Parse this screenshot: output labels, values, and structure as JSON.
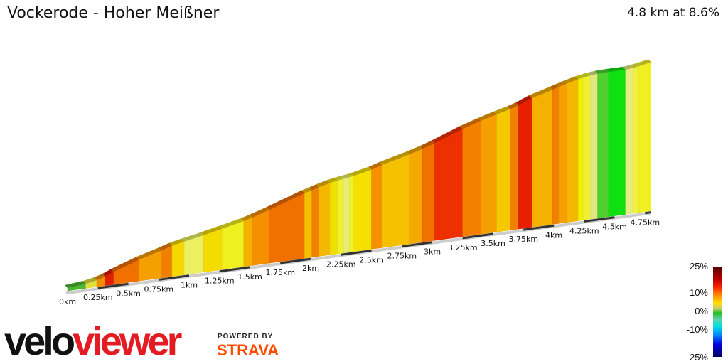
{
  "title": "Vockerode - Hoher Meißner",
  "summary": "4.8 km at 8.6%",
  "chart_data": {
    "type": "area",
    "xlabel": "",
    "ylabel": "",
    "total_distance_km": 4.8,
    "average_gradient_pct": 8.6,
    "x_ticks": [
      "0km",
      "0.25km",
      "0.5km",
      "0.75km",
      "1km",
      "1.25km",
      "1.5km",
      "1.75km",
      "2km",
      "2.25km",
      "2.5km",
      "2.75km",
      "3km",
      "3.25km",
      "3.5km",
      "3.75km",
      "4km",
      "4.25km",
      "4.5km",
      "4.75km"
    ],
    "segments": [
      {
        "from": 0,
        "to": 0.15,
        "gradient": 3,
        "color": "#4cb830"
      },
      {
        "from": 0.15,
        "to": 0.24,
        "gradient": 6,
        "color": "#e0e040"
      },
      {
        "from": 0.24,
        "to": 0.31,
        "gradient": 9,
        "color": "#f09000"
      },
      {
        "from": 0.31,
        "to": 0.38,
        "gradient": 14,
        "color": "#e02000"
      },
      {
        "from": 0.38,
        "to": 0.59,
        "gradient": 11,
        "color": "#f07000"
      },
      {
        "from": 0.59,
        "to": 0.77,
        "gradient": 9,
        "color": "#f5a000"
      },
      {
        "from": 0.77,
        "to": 0.86,
        "gradient": 10,
        "color": "#f08000"
      },
      {
        "from": 0.86,
        "to": 0.96,
        "gradient": 7,
        "color": "#f5d800"
      },
      {
        "from": 0.96,
        "to": 1.12,
        "gradient": 6,
        "color": "#ecf060"
      },
      {
        "from": 1.12,
        "to": 1.27,
        "gradient": 7,
        "color": "#f5dc00"
      },
      {
        "from": 1.27,
        "to": 1.45,
        "gradient": 7,
        "color": "#f0f020"
      },
      {
        "from": 1.45,
        "to": 1.52,
        "gradient": 9,
        "color": "#f5b000"
      },
      {
        "from": 1.52,
        "to": 1.66,
        "gradient": 10,
        "color": "#f59000"
      },
      {
        "from": 1.66,
        "to": 1.95,
        "gradient": 11,
        "color": "#f07000"
      },
      {
        "from": 1.95,
        "to": 2.01,
        "gradient": 8,
        "color": "#f5c000"
      },
      {
        "from": 2.01,
        "to": 2.07,
        "gradient": 10,
        "color": "#f08000"
      },
      {
        "from": 2.07,
        "to": 2.16,
        "gradient": 8,
        "color": "#f5b800"
      },
      {
        "from": 2.16,
        "to": 2.22,
        "gradient": 6,
        "color": "#f0e000"
      },
      {
        "from": 2.22,
        "to": 2.27,
        "gradient": 5,
        "color": "#f0f030"
      },
      {
        "from": 2.27,
        "to": 2.32,
        "gradient": 4,
        "color": "#e8ec70"
      },
      {
        "from": 2.32,
        "to": 2.35,
        "gradient": 5,
        "color": "#f0f030"
      },
      {
        "from": 2.35,
        "to": 2.5,
        "gradient": 7,
        "color": "#f5e000"
      },
      {
        "from": 2.5,
        "to": 2.59,
        "gradient": 10,
        "color": "#f59000"
      },
      {
        "from": 2.59,
        "to": 2.81,
        "gradient": 8,
        "color": "#f5c000"
      },
      {
        "from": 2.81,
        "to": 2.92,
        "gradient": 9,
        "color": "#f5a800"
      },
      {
        "from": 2.92,
        "to": 3.02,
        "gradient": 11,
        "color": "#f07000"
      },
      {
        "from": 3.02,
        "to": 3.25,
        "gradient": 12,
        "color": "#ee3000"
      },
      {
        "from": 3.25,
        "to": 3.4,
        "gradient": 10,
        "color": "#f58000"
      },
      {
        "from": 3.4,
        "to": 3.53,
        "gradient": 9,
        "color": "#f5a000"
      },
      {
        "from": 3.53,
        "to": 3.64,
        "gradient": 8,
        "color": "#f5c800"
      },
      {
        "from": 3.64,
        "to": 3.71,
        "gradient": 10,
        "color": "#f08000"
      },
      {
        "from": 3.71,
        "to": 3.82,
        "gradient": 13,
        "color": "#e82000"
      },
      {
        "from": 3.82,
        "to": 3.99,
        "gradient": 9,
        "color": "#f5b000"
      },
      {
        "from": 3.99,
        "to": 4.04,
        "gradient": 10,
        "color": "#f08000"
      },
      {
        "from": 4.04,
        "to": 4.11,
        "gradient": 9,
        "color": "#f5a000"
      },
      {
        "from": 4.11,
        "to": 4.2,
        "gradient": 8,
        "color": "#f5b800"
      },
      {
        "from": 4.2,
        "to": 4.24,
        "gradient": 6,
        "color": "#f0f000"
      },
      {
        "from": 4.24,
        "to": 4.3,
        "gradient": 5,
        "color": "#f0f030"
      },
      {
        "from": 4.3,
        "to": 4.36,
        "gradient": 3,
        "color": "#e0e880"
      },
      {
        "from": 4.36,
        "to": 4.45,
        "gradient": 1,
        "color": "#50d030"
      },
      {
        "from": 4.45,
        "to": 4.59,
        "gradient": 0,
        "color": "#10e010"
      },
      {
        "from": 4.59,
        "to": 4.65,
        "gradient": 3,
        "color": "#e8ec80"
      },
      {
        "from": 4.65,
        "to": 4.7,
        "gradient": 5,
        "color": "#f0f040"
      },
      {
        "from": 4.7,
        "to": 4.8,
        "gradient": 6,
        "color": "#f0f020"
      }
    ]
  },
  "legend": {
    "labels": [
      "25%",
      "10%",
      "0%",
      "-10%",
      "-25%"
    ]
  },
  "branding": {
    "logo_part1": "velo",
    "logo_part2": "viewer",
    "powered_by": "POWERED BY",
    "strava": "STRAVA",
    "strava_color": "#fc4c02"
  }
}
